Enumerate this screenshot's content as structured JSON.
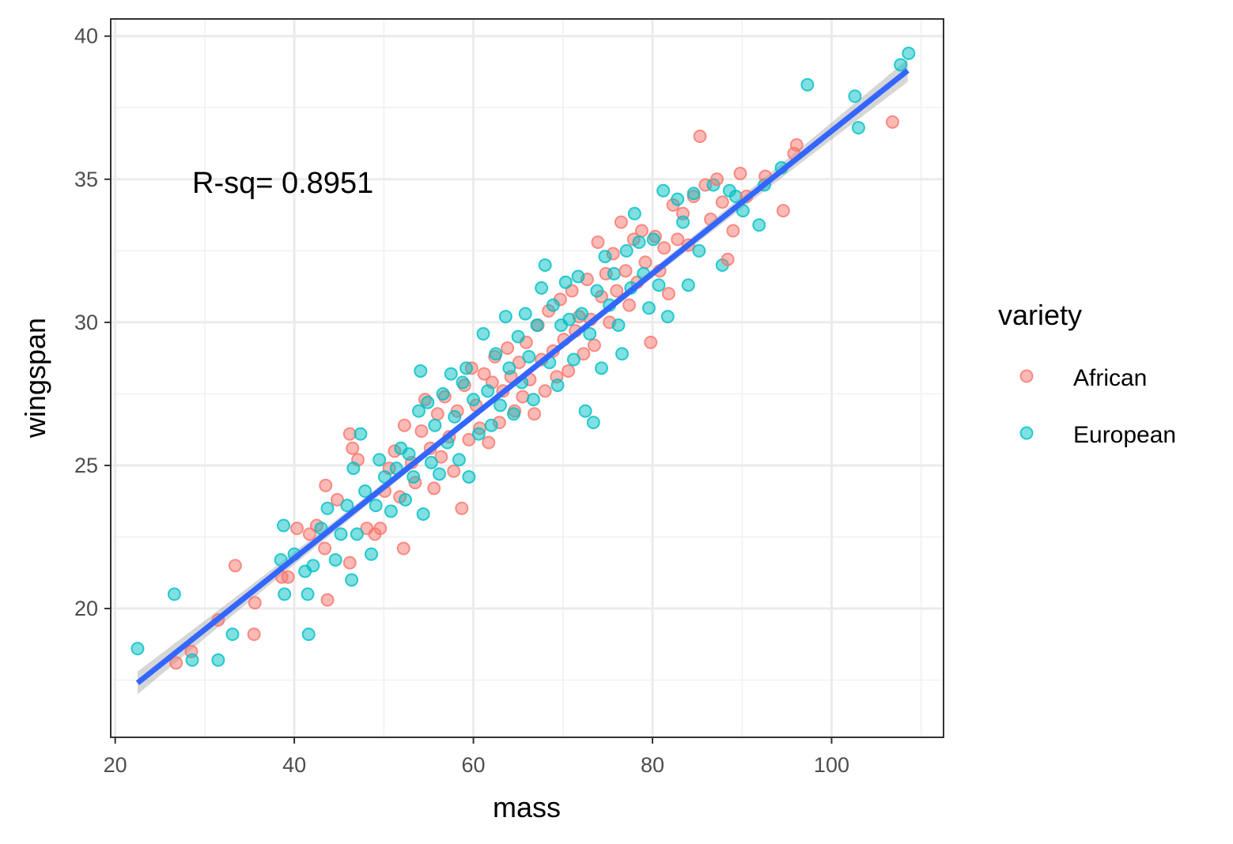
{
  "chart_data": {
    "type": "scatter",
    "title": "",
    "xlabel": "mass",
    "ylabel": "wingspan",
    "xlim": [
      19.5,
      112.5
    ],
    "ylim": [
      15.5,
      40.6
    ],
    "x_ticks": [
      20,
      40,
      60,
      80,
      100
    ],
    "y_ticks": [
      20,
      25,
      30,
      35,
      40
    ],
    "grid": true,
    "annotation": "R-sq= 0.8951",
    "legend": {
      "title": "variety",
      "position": "right",
      "entries": [
        {
          "label": "African",
          "color": "#F8766D"
        },
        {
          "label": "European",
          "color": "#00BFC4"
        }
      ]
    },
    "fit_line": {
      "x": [
        22.5,
        108.5
      ],
      "y": [
        17.4,
        38.8
      ],
      "color": "#3366FF",
      "band_color": "#999999"
    },
    "series": [
      {
        "name": "African",
        "color": "#F8766D",
        "points": [
          [
            26.8,
            18.1
          ],
          [
            28.5,
            18.5
          ],
          [
            31.5,
            19.6
          ],
          [
            33.4,
            21.5
          ],
          [
            35.5,
            19.1
          ],
          [
            35.6,
            20.2
          ],
          [
            38.6,
            21.1
          ],
          [
            39.3,
            21.1
          ],
          [
            40.3,
            22.8
          ],
          [
            41.7,
            22.6
          ],
          [
            42.5,
            22.9
          ],
          [
            43.4,
            22.1
          ],
          [
            43.7,
            20.3
          ],
          [
            43.5,
            24.3
          ],
          [
            44.8,
            23.8
          ],
          [
            46.2,
            26.1
          ],
          [
            46.5,
            25.6
          ],
          [
            46.2,
            21.6
          ],
          [
            47.1,
            25.2
          ],
          [
            48.1,
            22.8
          ],
          [
            49.0,
            22.6
          ],
          [
            49.6,
            22.8
          ],
          [
            50.1,
            24.1
          ],
          [
            50.6,
            24.9
          ],
          [
            51.2,
            25.5
          ],
          [
            51.8,
            23.9
          ],
          [
            52.2,
            22.1
          ],
          [
            52.3,
            26.4
          ],
          [
            53.1,
            25.1
          ],
          [
            53.5,
            24.4
          ],
          [
            54.2,
            26.2
          ],
          [
            54.6,
            27.3
          ],
          [
            55.2,
            25.6
          ],
          [
            55.6,
            24.2
          ],
          [
            56.0,
            26.8
          ],
          [
            56.4,
            25.3
          ],
          [
            56.8,
            27.4
          ],
          [
            57.3,
            26.0
          ],
          [
            57.8,
            24.8
          ],
          [
            58.2,
            26.9
          ],
          [
            58.7,
            23.5
          ],
          [
            59.0,
            27.8
          ],
          [
            59.5,
            25.9
          ],
          [
            59.8,
            28.4
          ],
          [
            60.3,
            27.1
          ],
          [
            60.7,
            26.3
          ],
          [
            61.2,
            28.2
          ],
          [
            61.7,
            25.8
          ],
          [
            62.1,
            27.9
          ],
          [
            62.4,
            28.8
          ],
          [
            62.9,
            26.5
          ],
          [
            63.3,
            27.6
          ],
          [
            63.8,
            29.1
          ],
          [
            64.2,
            28.1
          ],
          [
            64.6,
            26.9
          ],
          [
            65.1,
            28.6
          ],
          [
            65.5,
            27.4
          ],
          [
            65.9,
            29.3
          ],
          [
            66.3,
            28.0
          ],
          [
            66.8,
            26.8
          ],
          [
            67.2,
            29.9
          ],
          [
            67.6,
            28.7
          ],
          [
            68.0,
            27.6
          ],
          [
            68.4,
            30.4
          ],
          [
            68.9,
            29.0
          ],
          [
            69.3,
            28.1
          ],
          [
            69.7,
            30.8
          ],
          [
            70.1,
            29.4
          ],
          [
            70.6,
            28.3
          ],
          [
            71.0,
            31.1
          ],
          [
            71.4,
            29.7
          ],
          [
            71.8,
            30.2
          ],
          [
            72.3,
            28.9
          ],
          [
            72.7,
            31.5
          ],
          [
            73.1,
            30.1
          ],
          [
            73.5,
            29.2
          ],
          [
            73.9,
            32.8
          ],
          [
            74.3,
            30.9
          ],
          [
            74.8,
            31.7
          ],
          [
            75.2,
            30.0
          ],
          [
            75.6,
            32.4
          ],
          [
            76.0,
            31.1
          ],
          [
            76.5,
            33.5
          ],
          [
            77.0,
            31.8
          ],
          [
            77.4,
            30.6
          ],
          [
            77.9,
            32.9
          ],
          [
            78.3,
            31.4
          ],
          [
            78.8,
            33.2
          ],
          [
            79.2,
            32.1
          ],
          [
            79.8,
            29.3
          ],
          [
            80.3,
            33.0
          ],
          [
            80.8,
            31.8
          ],
          [
            81.3,
            32.6
          ],
          [
            81.8,
            31.0
          ],
          [
            82.3,
            34.1
          ],
          [
            82.8,
            32.9
          ],
          [
            83.4,
            33.8
          ],
          [
            84.0,
            32.7
          ],
          [
            84.6,
            34.4
          ],
          [
            85.3,
            36.5
          ],
          [
            85.9,
            34.8
          ],
          [
            86.5,
            33.6
          ],
          [
            87.2,
            35.0
          ],
          [
            87.8,
            34.2
          ],
          [
            88.4,
            32.2
          ],
          [
            89.0,
            33.2
          ],
          [
            89.8,
            35.2
          ],
          [
            90.5,
            34.4
          ],
          [
            92.6,
            35.1
          ],
          [
            94.6,
            33.9
          ],
          [
            95.8,
            35.9
          ],
          [
            96.1,
            36.2
          ],
          [
            106.8,
            37.0
          ]
        ]
      },
      {
        "name": "European",
        "color": "#00BFC4",
        "points": [
          [
            22.5,
            18.6
          ],
          [
            26.6,
            20.5
          ],
          [
            28.6,
            18.2
          ],
          [
            31.5,
            18.2
          ],
          [
            33.1,
            19.1
          ],
          [
            38.5,
            21.7
          ],
          [
            38.8,
            22.9
          ],
          [
            38.9,
            20.5
          ],
          [
            40.0,
            21.9
          ],
          [
            41.2,
            21.3
          ],
          [
            41.5,
            20.5
          ],
          [
            41.6,
            19.1
          ],
          [
            42.1,
            21.5
          ],
          [
            43.0,
            22.8
          ],
          [
            43.7,
            23.5
          ],
          [
            44.6,
            21.7
          ],
          [
            45.2,
            22.6
          ],
          [
            45.9,
            23.6
          ],
          [
            46.4,
            21.0
          ],
          [
            46.6,
            24.9
          ],
          [
            47.0,
            22.6
          ],
          [
            47.4,
            26.1
          ],
          [
            47.9,
            24.1
          ],
          [
            48.6,
            21.9
          ],
          [
            49.1,
            23.6
          ],
          [
            49.5,
            25.2
          ],
          [
            50.1,
            24.6
          ],
          [
            50.8,
            23.4
          ],
          [
            51.4,
            24.9
          ],
          [
            51.9,
            25.6
          ],
          [
            52.4,
            23.8
          ],
          [
            52.8,
            25.4
          ],
          [
            53.3,
            24.6
          ],
          [
            53.9,
            26.9
          ],
          [
            54.1,
            28.3
          ],
          [
            54.4,
            23.3
          ],
          [
            54.9,
            27.2
          ],
          [
            55.3,
            25.1
          ],
          [
            55.7,
            26.4
          ],
          [
            56.2,
            24.7
          ],
          [
            56.6,
            27.5
          ],
          [
            57.1,
            25.8
          ],
          [
            57.5,
            28.2
          ],
          [
            57.9,
            26.7
          ],
          [
            58.4,
            25.2
          ],
          [
            58.8,
            27.9
          ],
          [
            59.2,
            28.4
          ],
          [
            59.5,
            24.6
          ],
          [
            60.0,
            27.3
          ],
          [
            60.6,
            26.1
          ],
          [
            61.1,
            29.6
          ],
          [
            61.6,
            27.6
          ],
          [
            62.0,
            26.4
          ],
          [
            62.5,
            28.9
          ],
          [
            63.0,
            27.1
          ],
          [
            63.6,
            30.2
          ],
          [
            64.0,
            28.4
          ],
          [
            64.5,
            26.8
          ],
          [
            65.0,
            29.5
          ],
          [
            65.4,
            27.9
          ],
          [
            65.8,
            30.3
          ],
          [
            66.2,
            28.8
          ],
          [
            66.7,
            27.3
          ],
          [
            67.1,
            29.9
          ],
          [
            67.6,
            31.2
          ],
          [
            68.0,
            32.0
          ],
          [
            68.5,
            28.6
          ],
          [
            68.9,
            30.6
          ],
          [
            69.4,
            27.8
          ],
          [
            69.8,
            29.9
          ],
          [
            70.3,
            31.4
          ],
          [
            70.7,
            30.1
          ],
          [
            71.2,
            28.7
          ],
          [
            71.7,
            31.6
          ],
          [
            72.1,
            30.3
          ],
          [
            72.5,
            26.9
          ],
          [
            73.0,
            29.6
          ],
          [
            73.4,
            26.5
          ],
          [
            73.8,
            31.1
          ],
          [
            74.3,
            28.4
          ],
          [
            74.7,
            32.3
          ],
          [
            75.2,
            30.6
          ],
          [
            75.7,
            31.7
          ],
          [
            76.2,
            29.9
          ],
          [
            76.6,
            28.9
          ],
          [
            77.1,
            32.5
          ],
          [
            77.6,
            31.2
          ],
          [
            78.0,
            33.8
          ],
          [
            78.5,
            32.8
          ],
          [
            79.0,
            31.7
          ],
          [
            79.6,
            30.5
          ],
          [
            80.1,
            32.9
          ],
          [
            80.7,
            31.3
          ],
          [
            81.2,
            34.6
          ],
          [
            81.7,
            30.2
          ],
          [
            82.8,
            34.3
          ],
          [
            83.4,
            33.5
          ],
          [
            84.0,
            31.3
          ],
          [
            84.6,
            34.5
          ],
          [
            85.2,
            32.5
          ],
          [
            86.8,
            34.8
          ],
          [
            87.8,
            32.0
          ],
          [
            88.6,
            34.6
          ],
          [
            89.3,
            34.4
          ],
          [
            90.1,
            33.9
          ],
          [
            91.9,
            33.4
          ],
          [
            92.5,
            34.8
          ],
          [
            94.4,
            35.4
          ],
          [
            97.3,
            38.3
          ],
          [
            102.6,
            37.9
          ],
          [
            103.0,
            36.8
          ],
          [
            107.7,
            39.0
          ],
          [
            108.6,
            39.4
          ]
        ]
      }
    ]
  }
}
